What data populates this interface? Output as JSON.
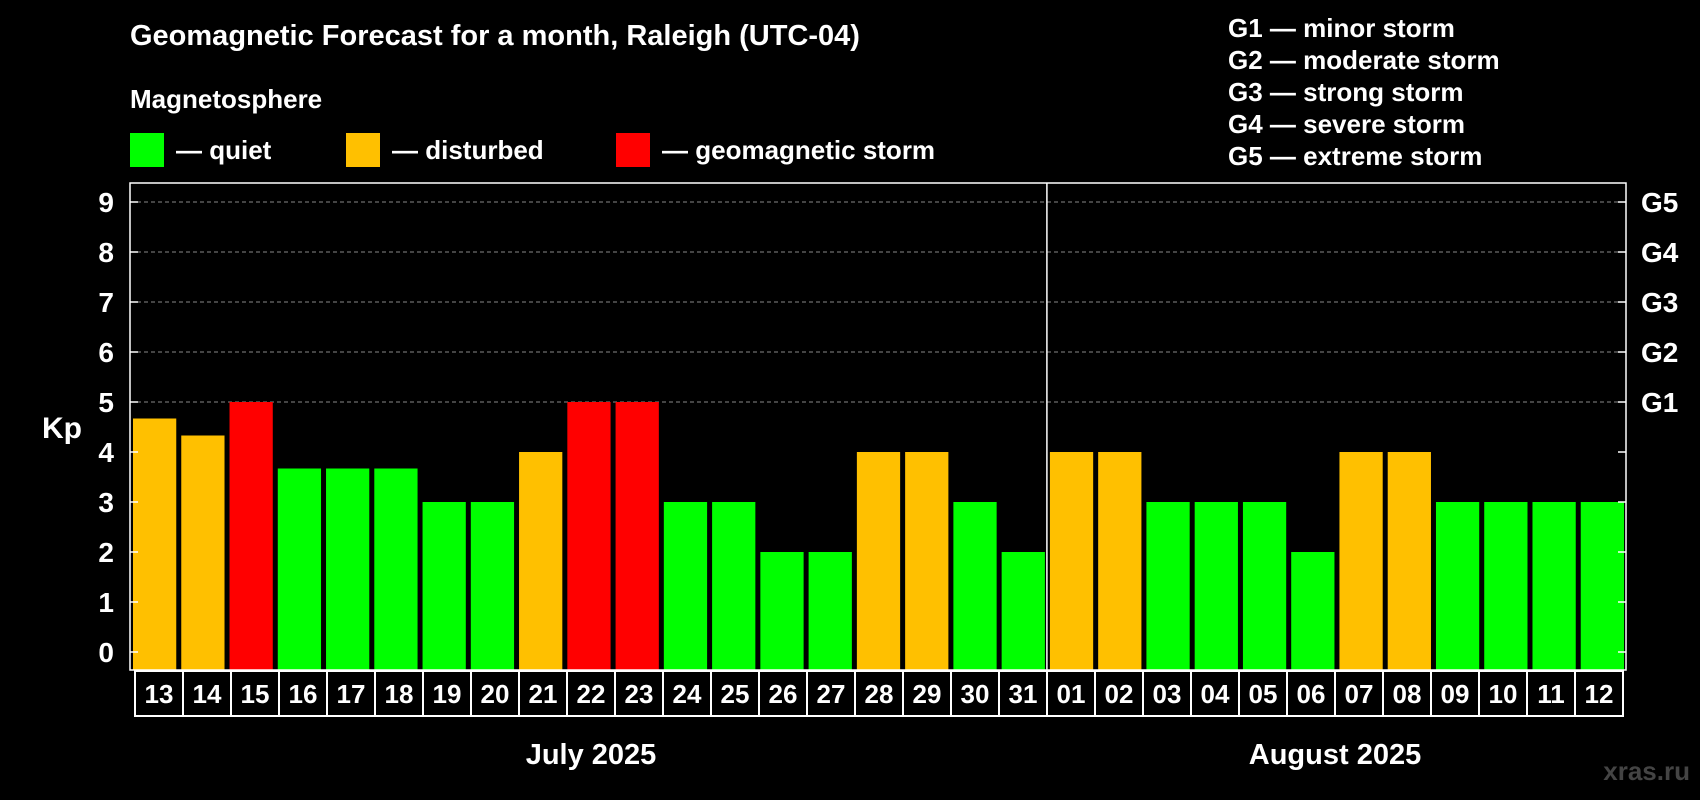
{
  "title": "Geomagnetic Forecast for a month, Raleigh (UTC-04)",
  "magnetosphere": {
    "title": "Magnetosphere",
    "items": [
      {
        "label": "— quiet",
        "color": "#00ff00"
      },
      {
        "label": "— disturbed",
        "color": "#ffc000"
      },
      {
        "label": "— geomagnetic storm",
        "color": "#ff0000"
      }
    ]
  },
  "g_scale": [
    "G1 — minor storm",
    "G2 — moderate storm",
    "G3 — strong storm",
    "G4 — severe storm",
    "G5 — extreme storm"
  ],
  "watermark": "xras.ru",
  "colors": {
    "quiet": "#00ff00",
    "disturbed": "#ffc000",
    "storm": "#ff0000"
  },
  "chart_data": {
    "type": "bar",
    "title": "Geomagnetic Forecast for a month, Raleigh (UTC-04)",
    "ylabel": "Kp",
    "ylim": [
      0,
      9
    ],
    "yticks": [
      "0",
      "1",
      "2",
      "3",
      "4",
      "5",
      "6",
      "7",
      "8",
      "9"
    ],
    "right_axis": [
      {
        "kp": 5,
        "label": "G1"
      },
      {
        "kp": 6,
        "label": "G2"
      },
      {
        "kp": 7,
        "label": "G3"
      },
      {
        "kp": 8,
        "label": "G4"
      },
      {
        "kp": 9,
        "label": "G5"
      }
    ],
    "categories": [
      "13",
      "14",
      "15",
      "16",
      "17",
      "18",
      "19",
      "20",
      "21",
      "22",
      "23",
      "24",
      "25",
      "26",
      "27",
      "28",
      "29",
      "30",
      "31",
      "01",
      "02",
      "03",
      "04",
      "05",
      "06",
      "07",
      "08",
      "09",
      "10",
      "11",
      "12"
    ],
    "values": [
      4.67,
      4.33,
      5,
      3.67,
      3.67,
      3.67,
      3,
      3,
      4,
      5,
      5,
      3,
      3,
      2,
      2,
      4,
      4,
      3,
      2,
      4,
      4,
      3,
      3,
      3,
      2,
      4,
      4,
      3,
      3,
      3,
      3
    ],
    "status": [
      "disturbed",
      "disturbed",
      "storm",
      "quiet",
      "quiet",
      "quiet",
      "quiet",
      "quiet",
      "disturbed",
      "storm",
      "storm",
      "quiet",
      "quiet",
      "quiet",
      "quiet",
      "disturbed",
      "disturbed",
      "quiet",
      "quiet",
      "disturbed",
      "disturbed",
      "quiet",
      "quiet",
      "quiet",
      "quiet",
      "disturbed",
      "disturbed",
      "quiet",
      "quiet",
      "quiet",
      "quiet"
    ],
    "months": [
      {
        "label": "July 2025",
        "start": 0,
        "count": 19
      },
      {
        "label": "August 2025",
        "start": 19,
        "count": 12
      }
    ],
    "grid": "dashed at Kp 5-9"
  }
}
